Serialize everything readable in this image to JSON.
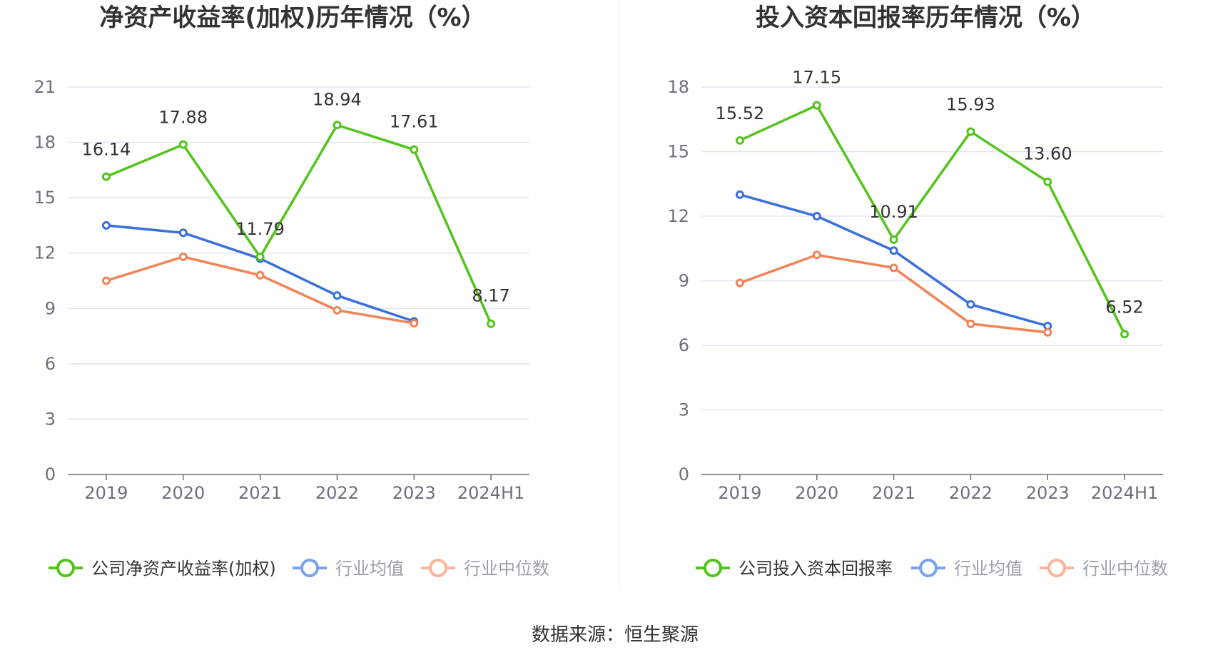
{
  "source": "数据来源：恒生聚源",
  "legend_items": [
    {
      "icon": "legend-line-circle",
      "color": "#52c41a"
    },
    {
      "icon": "legend-line-circle",
      "color": "#7aa3ef"
    },
    {
      "icon": "legend-line-circle",
      "color": "#f9b49a"
    }
  ],
  "colors": {
    "company": "#52c41a",
    "average": "#3a6fdc",
    "median": "#f08457",
    "legend_text_active": "#333333",
    "legend_text_inactive": "#9aa0a6",
    "grid": "#e0e6f1",
    "axis": "#6e7079"
  },
  "chart_data": [
    {
      "type": "line",
      "title": "净资产收益率(加权)历年情况（%）",
      "categories": [
        "2019",
        "2020",
        "2021",
        "2022",
        "2023",
        "2024H1"
      ],
      "ylim": [
        0,
        21
      ],
      "yticks": [
        "0",
        "3",
        "6",
        "9",
        "12",
        "15",
        "18",
        "21"
      ],
      "grid": true,
      "legend_position": "bottom",
      "series": [
        {
          "name": "公司净资产收益率(加权)",
          "values": [
            16.14,
            17.88,
            11.79,
            18.94,
            17.61,
            8.17
          ],
          "labels": [
            "16.14",
            "17.88",
            "11.79",
            "18.94",
            "17.61",
            "8.17"
          ]
        },
        {
          "name": "行业均值",
          "values": [
            13.5,
            13.1,
            11.7,
            9.7,
            8.3,
            null
          ]
        },
        {
          "name": "行业中位数",
          "values": [
            10.5,
            11.8,
            10.8,
            8.9,
            8.2,
            null
          ]
        }
      ]
    },
    {
      "type": "line",
      "title": "投入资本回报率历年情况（%）",
      "categories": [
        "2019",
        "2020",
        "2021",
        "2022",
        "2023",
        "2024H1"
      ],
      "ylim": [
        0,
        18
      ],
      "yticks": [
        "0",
        "3",
        "6",
        "9",
        "12",
        "15",
        "18"
      ],
      "grid": true,
      "legend_position": "bottom",
      "series": [
        {
          "name": "公司投入资本回报率",
          "values": [
            15.52,
            17.15,
            10.91,
            15.93,
            13.6,
            6.52
          ],
          "labels": [
            "15.52",
            "17.15",
            "10.91",
            "15.93",
            "13.60",
            "6.52"
          ]
        },
        {
          "name": "行业均值",
          "values": [
            13.0,
            12.0,
            10.4,
            7.9,
            6.9,
            null
          ]
        },
        {
          "name": "行业中位数",
          "values": [
            8.9,
            10.2,
            9.6,
            7.0,
            6.6,
            null
          ]
        }
      ]
    }
  ]
}
